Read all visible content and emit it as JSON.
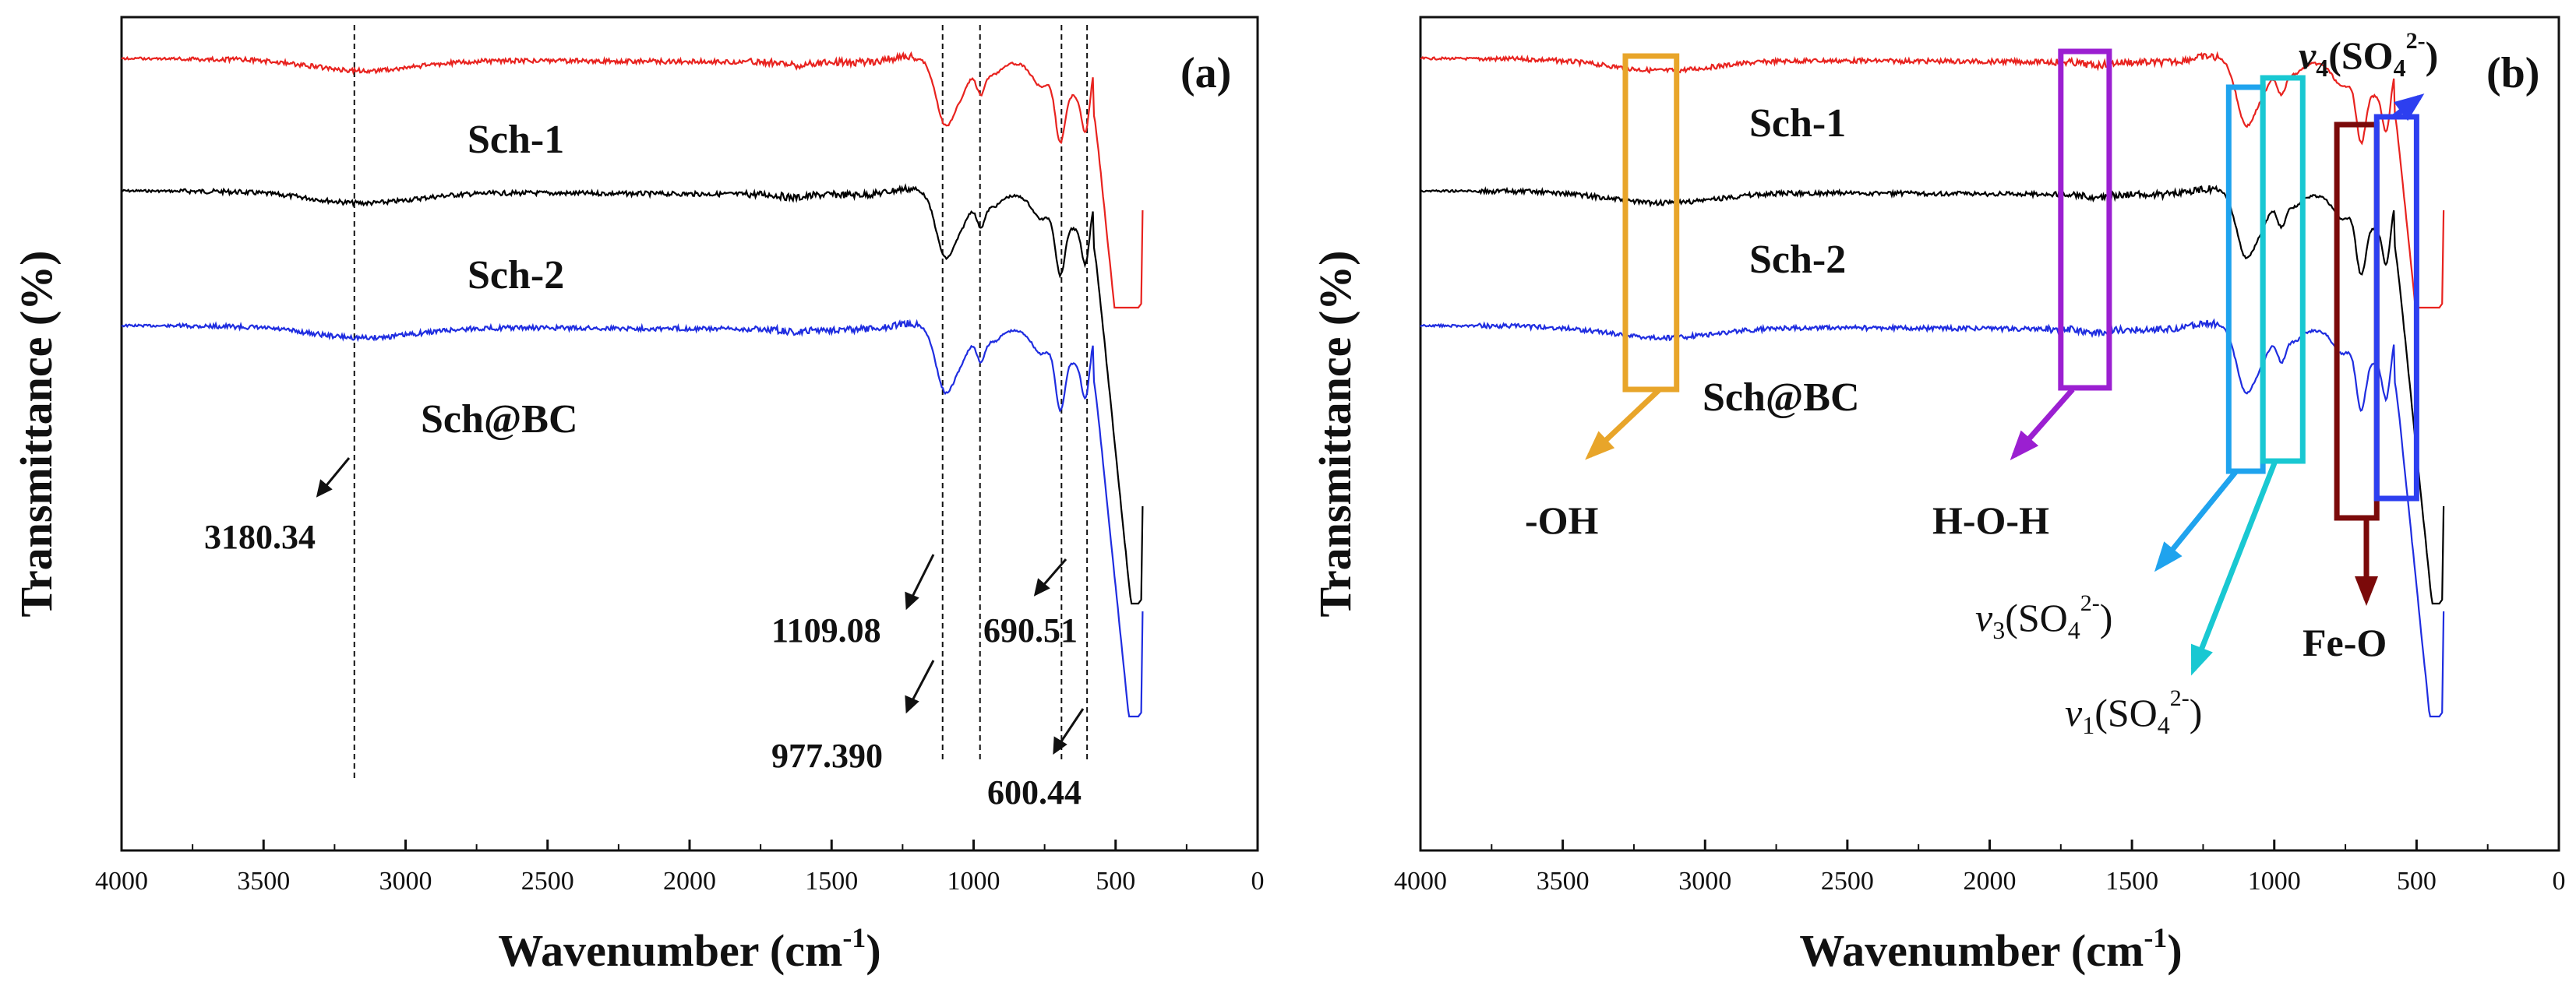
{
  "chart_data": [
    {
      "type": "line",
      "panel_label": "(a)",
      "xlabel": "Wavenumber (cm",
      "xlabel_sup": "-1",
      "xlabel_close": ")",
      "ylabel": "Transmittance (%)",
      "xlim": [
        4000,
        0
      ],
      "x_ticks": [
        4000,
        3500,
        3000,
        2500,
        2000,
        1500,
        1000,
        500,
        0
      ],
      "series": [
        {
          "name": "Sch-1",
          "color": "#e8231f",
          "offset": 0.93,
          "ends": "top"
        },
        {
          "name": "Sch-2",
          "color": "#000000",
          "offset": 0.77,
          "ends": "mid"
        },
        {
          "name": "Sch@BC",
          "color": "#1f2de0",
          "offset": 0.61,
          "ends": "low"
        }
      ],
      "reference_lines": [
        3180.34,
        1109.08,
        977.39,
        690.51,
        600.44
      ],
      "annotations": [
        "3180.34",
        "1109.08",
        "977.390",
        "690.51",
        "600.44"
      ]
    },
    {
      "type": "line",
      "panel_label": "(b)",
      "xlabel": "Wavenumber (cm",
      "xlabel_sup": "-1",
      "xlabel_close": ")",
      "ylabel": "Transmittance (%)",
      "xlim": [
        4000,
        0
      ],
      "x_ticks": [
        4000,
        3500,
        3000,
        2500,
        2000,
        1500,
        1000,
        500,
        0
      ],
      "series": [
        {
          "name": "Sch-1",
          "color": "#e8231f"
        },
        {
          "name": "Sch-2",
          "color": "#000000"
        },
        {
          "name": "Sch@BC",
          "color": "#1f2de0"
        }
      ],
      "band_annotations": [
        {
          "label": "-OH",
          "range": [
            3280,
            3100
          ],
          "color": "#e8a52a"
        },
        {
          "label": "H-O-H",
          "range": [
            1750,
            1580
          ],
          "color": "#9b1fd1"
        },
        {
          "label_main": "v",
          "label_sub": "3",
          "label_open": "(SO",
          "label_sub2": "4",
          "label_sup2": "2-",
          "label_close": ")",
          "range": [
            1160,
            1040
          ],
          "color": "#1fa3ee"
        },
        {
          "label_main": "v",
          "label_sub": "1",
          "label_open": "(SO",
          "label_sub2": "4",
          "label_sup2": "2-",
          "label_close": ")",
          "range": [
            1040,
            900
          ],
          "color": "#19c8d2"
        },
        {
          "label": "Fe-O",
          "range": [
            780,
            640
          ],
          "color": "#7b0a0a"
        },
        {
          "label_main": "v",
          "label_sub": "4",
          "label_open": "(SO",
          "label_sub2": "4",
          "label_sup2": "2-",
          "label_close": ")",
          "range": [
            640,
            500
          ],
          "color": "#2d3ff0"
        }
      ]
    }
  ]
}
